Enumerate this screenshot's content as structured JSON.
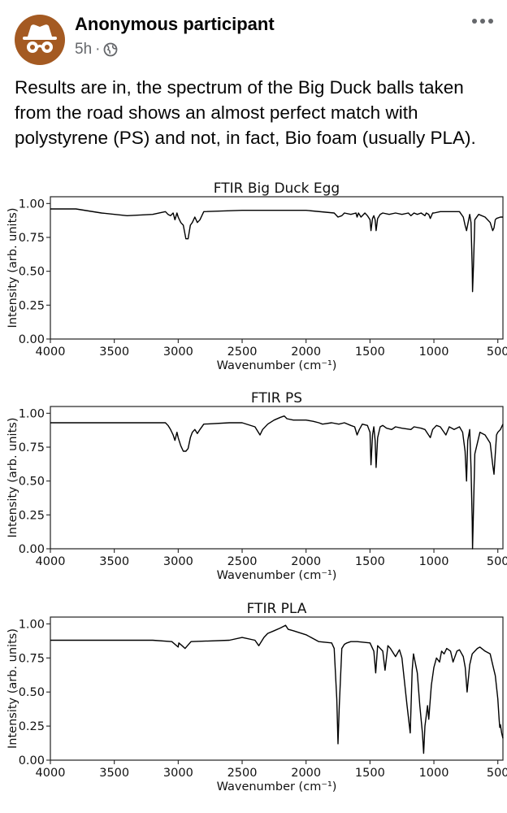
{
  "post": {
    "author": "Anonymous participant",
    "time": "5h",
    "separator": "·",
    "text": "Results are in, the spectrum of the Big Duck balls taken from the road shows an almost perfect match with polystyrene (PS) and not, in fact, Bio foam (usually PLA)."
  },
  "icons": {
    "avatar": "incognito-icon",
    "privacy": "globe-icon",
    "menu": "more-horizontal-icon"
  },
  "chart_data": [
    {
      "type": "line",
      "title": "FTIR Big Duck Egg",
      "xlabel": "Wavenumber (cm⁻¹)",
      "ylabel": "Intensity (arb. units)",
      "xlim": [
        4000,
        460
      ],
      "ylim": [
        0,
        1.05
      ],
      "xticks": [
        "4000",
        "3500",
        "3000",
        "2500",
        "2000",
        "1500",
        "1000",
        "500"
      ],
      "yticks": [
        "0.00",
        "0.25",
        "0.50",
        "0.75",
        "1.00"
      ],
      "series": [
        {
          "name": "Big Duck Egg",
          "color": "#000000",
          "x": [
            4000,
            3800,
            3600,
            3400,
            3200,
            3100,
            3080,
            3060,
            3040,
            3026,
            3010,
            3000,
            2980,
            2960,
            2940,
            2923,
            2905,
            2890,
            2870,
            2850,
            2830,
            2800,
            2500,
            2000,
            1780,
            1750,
            1720,
            1700,
            1650,
            1610,
            1601,
            1590,
            1570,
            1540,
            1520,
            1500,
            1492,
            1480,
            1470,
            1460,
            1452,
            1440,
            1420,
            1400,
            1350,
            1300,
            1250,
            1200,
            1180,
            1155,
            1130,
            1100,
            1070,
            1060,
            1040,
            1028,
            1010,
            1000,
            950,
            900,
            850,
            800,
            770,
            756,
            745,
            720,
            710,
            700,
            698,
            690,
            680,
            650,
            600,
            560,
            540,
            530,
            520,
            510,
            480,
            460
          ],
          "y": [
            0.96,
            0.96,
            0.93,
            0.91,
            0.92,
            0.94,
            0.92,
            0.91,
            0.93,
            0.88,
            0.93,
            0.9,
            0.86,
            0.84,
            0.74,
            0.74,
            0.84,
            0.86,
            0.9,
            0.86,
            0.88,
            0.94,
            0.95,
            0.95,
            0.93,
            0.9,
            0.91,
            0.93,
            0.92,
            0.93,
            0.9,
            0.93,
            0.9,
            0.93,
            0.91,
            0.88,
            0.8,
            0.89,
            0.91,
            0.88,
            0.8,
            0.89,
            0.92,
            0.93,
            0.92,
            0.93,
            0.92,
            0.93,
            0.91,
            0.93,
            0.92,
            0.93,
            0.91,
            0.93,
            0.92,
            0.89,
            0.93,
            0.93,
            0.94,
            0.94,
            0.94,
            0.94,
            0.9,
            0.84,
            0.8,
            0.92,
            0.86,
            0.52,
            0.35,
            0.55,
            0.88,
            0.92,
            0.9,
            0.86,
            0.8,
            0.82,
            0.88,
            0.89,
            0.9,
            0.9
          ]
        }
      ]
    },
    {
      "type": "line",
      "title": "FTIR PS",
      "xlabel": "Wavenumber (cm⁻¹)",
      "ylabel": "Intensity (arb. units)",
      "xlim": [
        4000,
        460
      ],
      "ylim": [
        0,
        1.05
      ],
      "xticks": [
        "4000",
        "3500",
        "3000",
        "2500",
        "2000",
        "1500",
        "1000",
        "500"
      ],
      "yticks": [
        "0.00",
        "0.25",
        "0.50",
        "0.75",
        "1.00"
      ],
      "series": [
        {
          "name": "PS",
          "color": "#000000",
          "x": [
            4000,
            3700,
            3400,
            3200,
            3100,
            3080,
            3060,
            3040,
            3026,
            3010,
            3000,
            2980,
            2960,
            2940,
            2923,
            2905,
            2890,
            2870,
            2850,
            2830,
            2800,
            2600,
            2500,
            2400,
            2360,
            2340,
            2300,
            2250,
            2200,
            2170,
            2150,
            2100,
            2000,
            1942,
            1900,
            1871,
            1800,
            1744,
            1700,
            1650,
            1620,
            1601,
            1583,
            1560,
            1520,
            1500,
            1492,
            1480,
            1470,
            1460,
            1452,
            1440,
            1420,
            1400,
            1370,
            1330,
            1300,
            1250,
            1180,
            1155,
            1100,
            1070,
            1028,
            1010,
            980,
            950,
            906,
            880,
            842,
            800,
            775,
            756,
            745,
            735,
            720,
            710,
            700,
            698,
            690,
            680,
            640,
            600,
            560,
            540,
            530,
            520,
            510,
            500,
            480,
            460
          ],
          "y": [
            0.93,
            0.93,
            0.93,
            0.93,
            0.93,
            0.91,
            0.88,
            0.84,
            0.8,
            0.86,
            0.82,
            0.76,
            0.72,
            0.72,
            0.74,
            0.82,
            0.86,
            0.88,
            0.85,
            0.88,
            0.92,
            0.93,
            0.93,
            0.9,
            0.84,
            0.88,
            0.92,
            0.95,
            0.97,
            0.98,
            0.96,
            0.95,
            0.95,
            0.94,
            0.93,
            0.92,
            0.93,
            0.92,
            0.93,
            0.91,
            0.9,
            0.84,
            0.88,
            0.92,
            0.91,
            0.86,
            0.62,
            0.84,
            0.9,
            0.8,
            0.6,
            0.82,
            0.9,
            0.91,
            0.89,
            0.88,
            0.9,
            0.89,
            0.88,
            0.9,
            0.89,
            0.88,
            0.82,
            0.88,
            0.91,
            0.9,
            0.84,
            0.9,
            0.88,
            0.9,
            0.86,
            0.72,
            0.5,
            0.8,
            0.88,
            0.6,
            0.2,
            0.0,
            0.3,
            0.7,
            0.86,
            0.84,
            0.78,
            0.62,
            0.55,
            0.7,
            0.84,
            0.86,
            0.88,
            0.92
          ]
        }
      ]
    },
    {
      "type": "line",
      "title": "FTIR PLA",
      "xlabel": "Wavenumber (cm⁻¹)",
      "ylabel": "Intensity (arb. units)",
      "xlim": [
        4000,
        460
      ],
      "ylim": [
        0,
        1.05
      ],
      "xticks": [
        "4000",
        "3500",
        "3000",
        "2500",
        "2000",
        "1500",
        "1000",
        "500"
      ],
      "yticks": [
        "0.00",
        "0.25",
        "0.50",
        "0.75",
        "1.00"
      ],
      "series": [
        {
          "name": "PLA",
          "color": "#000000",
          "x": [
            4000,
            3800,
            3600,
            3400,
            3200,
            3050,
            3000,
            2995,
            2970,
            2946,
            2900,
            2600,
            2500,
            2400,
            2370,
            2330,
            2300,
            2250,
            2200,
            2160,
            2140,
            2100,
            2000,
            1900,
            1800,
            1780,
            1760,
            1750,
            1740,
            1720,
            1700,
            1680,
            1650,
            1600,
            1500,
            1470,
            1455,
            1440,
            1400,
            1382,
            1360,
            1340,
            1300,
            1270,
            1250,
            1210,
            1185,
            1170,
            1160,
            1130,
            1110,
            1090,
            1080,
            1070,
            1050,
            1040,
            1020,
            1000,
            980,
            956,
            940,
            920,
            900,
            870,
            850,
            820,
            800,
            770,
            755,
            740,
            720,
            700,
            680,
            660,
            640,
            600,
            560,
            540,
            520,
            500,
            490,
            485,
            480,
            470,
            460
          ],
          "y": [
            0.88,
            0.88,
            0.88,
            0.88,
            0.88,
            0.87,
            0.83,
            0.86,
            0.84,
            0.82,
            0.87,
            0.88,
            0.9,
            0.88,
            0.84,
            0.9,
            0.93,
            0.95,
            0.97,
            0.99,
            0.96,
            0.95,
            0.92,
            0.87,
            0.86,
            0.82,
            0.45,
            0.12,
            0.4,
            0.82,
            0.85,
            0.86,
            0.87,
            0.87,
            0.86,
            0.8,
            0.64,
            0.84,
            0.8,
            0.66,
            0.84,
            0.82,
            0.76,
            0.81,
            0.75,
            0.4,
            0.2,
            0.66,
            0.78,
            0.64,
            0.4,
            0.2,
            0.05,
            0.25,
            0.4,
            0.3,
            0.55,
            0.68,
            0.75,
            0.72,
            0.8,
            0.78,
            0.82,
            0.8,
            0.72,
            0.8,
            0.81,
            0.76,
            0.68,
            0.5,
            0.7,
            0.78,
            0.8,
            0.82,
            0.83,
            0.8,
            0.78,
            0.7,
            0.62,
            0.45,
            0.3,
            0.24,
            0.26,
            0.2,
            0.16
          ]
        }
      ]
    }
  ]
}
